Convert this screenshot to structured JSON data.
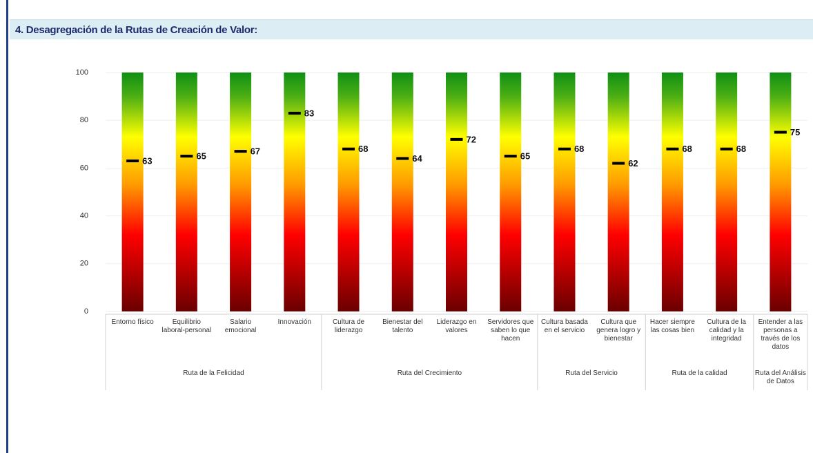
{
  "chart_data": {
    "type": "marker",
    "title": "4. Desagregación de la Rutas de Creación de Valor:",
    "ylim": [
      0,
      100
    ],
    "yticks": [
      0,
      20,
      40,
      60,
      80,
      100
    ],
    "grid": true,
    "marker_color": "#000000",
    "groups": [
      {
        "name": "Ruta de la Felicidad",
        "categories": [
          "Entorno físico",
          "Equilibrio laboral-personal",
          "Salario emocional",
          "Innovación"
        ],
        "values": [
          63,
          65,
          67,
          83
        ]
      },
      {
        "name": "Ruta del Crecimiento",
        "categories": [
          "Cultura de liderazgo",
          "Bienestar del talento",
          "Liderazgo en valores",
          "Servidores que saben lo que hacen"
        ],
        "values": [
          68,
          64,
          72,
          65
        ]
      },
      {
        "name": "Ruta del Servicio",
        "categories": [
          "Cultura basada en el servicio",
          "Cultura que genera logro y bienestar"
        ],
        "values": [
          68,
          62
        ]
      },
      {
        "name": "Ruta de la calidad",
        "categories": [
          "Hacer siempre las cosas bien",
          "Cultura de la calidad y la integridad"
        ],
        "values": [
          68,
          68
        ]
      },
      {
        "name": "Ruta del Análisis de Datos",
        "categories": [
          "Entender a las personas a través de los datos"
        ],
        "values": [
          75
        ]
      }
    ]
  }
}
